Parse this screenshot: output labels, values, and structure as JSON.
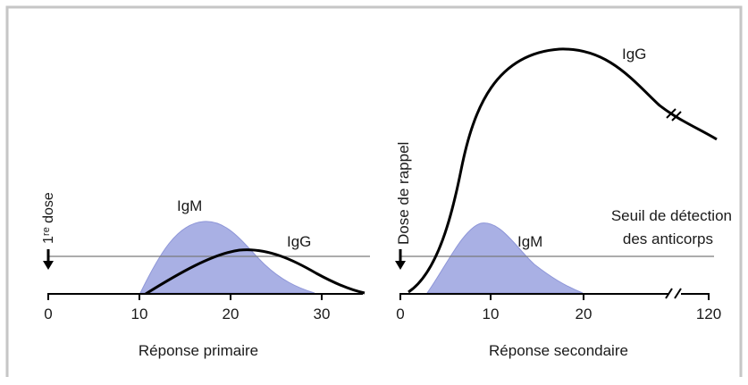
{
  "colors": {
    "border": "#c6c6c6",
    "axis": "#000000",
    "igm_fill": "#a9b0e4",
    "igm_stroke": "#8e96d8",
    "igg_curve": "#000000",
    "threshold_line": "#7a7a7a"
  },
  "icons": {
    "dose_arrow": "arrow-down-icon",
    "axis_break": "axis-break-icon"
  },
  "primary": {
    "caption": "Réponse primaire",
    "dose_label": "1ʳᵉ dose",
    "igm_label": "IgM",
    "igg_label": "IgG",
    "ticks": [
      "0",
      "10",
      "20",
      "30"
    ]
  },
  "secondary": {
    "caption": "Réponse secondaire",
    "dose_label": "Dose de rappel",
    "igm_label": "IgM",
    "igg_label": "IgG",
    "threshold_label_line1": "Seuil de détection",
    "threshold_label_line2": "des anticorps",
    "ticks": [
      "0",
      "10",
      "20",
      "120"
    ]
  }
}
